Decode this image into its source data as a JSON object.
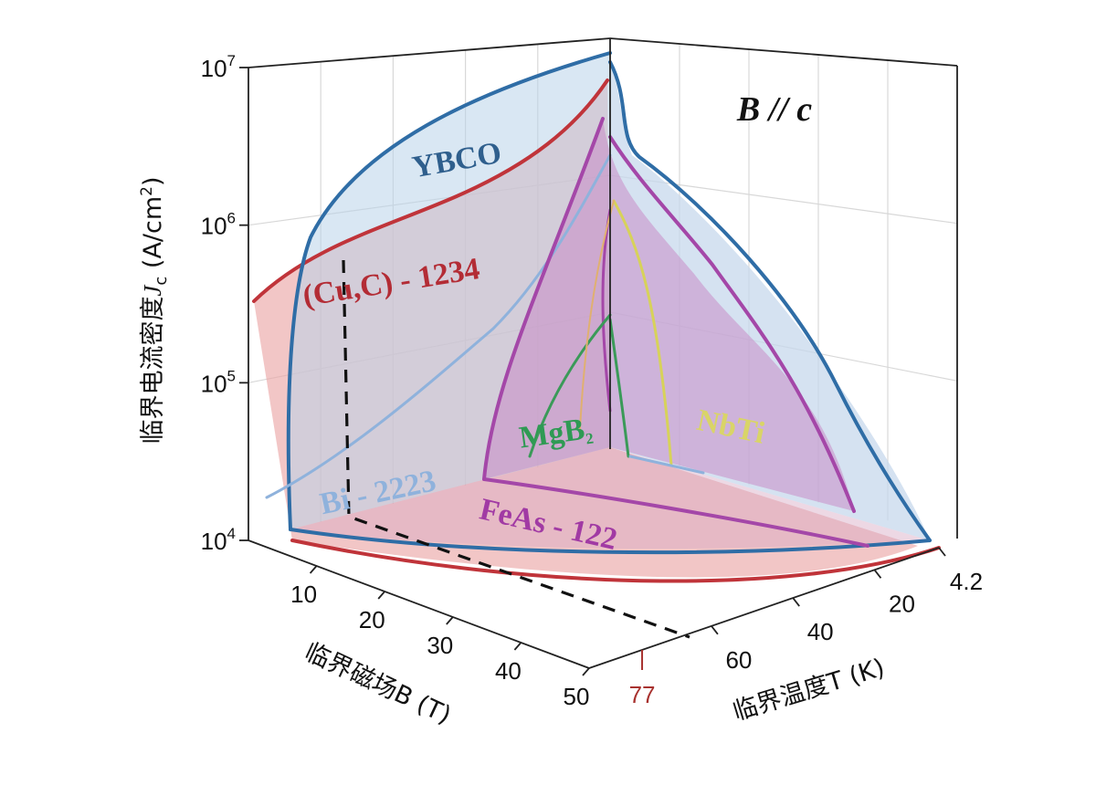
{
  "chart_data": {
    "type": "area",
    "annotation": "B // c",
    "axes": {
      "field": {
        "label": "临界磁场B (T)",
        "ticks": [
          "10",
          "20",
          "30",
          "40",
          "50"
        ]
      },
      "temperature": {
        "label": "临界温度T (K)",
        "ticks": [
          "4.2",
          "20",
          "40",
          "60"
        ],
        "marker": "77"
      },
      "jc": {
        "label_main": "临界电流密度",
        "label_symbol": "J",
        "label_sub": "c",
        "label_unit": " (A/cm",
        "label_sup": "2",
        "label_close": ")",
        "ticks": [
          {
            "base": "10",
            "exp": "4"
          },
          {
            "base": "10",
            "exp": "5"
          },
          {
            "base": "10",
            "exp": "6"
          },
          {
            "base": "10",
            "exp": "7"
          }
        ],
        "scale": "log"
      }
    },
    "grid": true,
    "series": [
      {
        "name": "YBCO",
        "label": "YBCO",
        "color": "#2f6da6",
        "fill": "#b9d3ea"
      },
      {
        "name": "(Cu,C) - 1234",
        "label": "(Cu,C) - 1234",
        "color": "#c0343a",
        "fill": "#eba8a8"
      },
      {
        "name": "Bi - 2223",
        "label": "Bi - 2223",
        "color": "#8fb2dc",
        "fill": "none"
      },
      {
        "name": "FeAs - 122",
        "label": "FeAs - 122",
        "color": "#a447a8",
        "fill": "#c98cc6"
      },
      {
        "name": "MgB2",
        "label_main": "MgB",
        "label_sub": "2",
        "color": "#3a9a58",
        "fill": "none"
      },
      {
        "name": "NbTi",
        "label": "NbTi",
        "color": "#d7d25a",
        "fill": "none"
      }
    ]
  }
}
